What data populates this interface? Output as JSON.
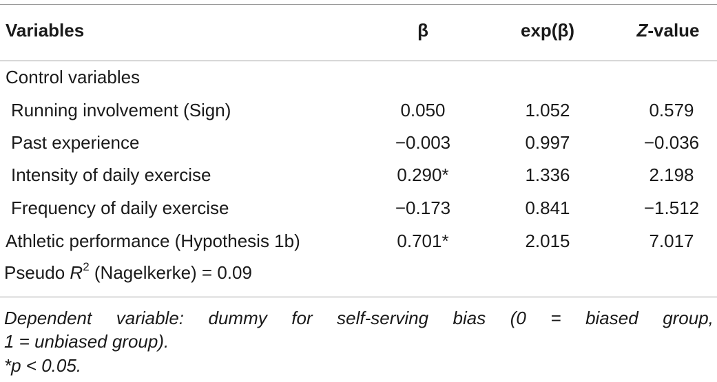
{
  "table": {
    "headers": {
      "variables": "Variables",
      "beta": "β",
      "exp_beta": "exp(β)",
      "z_italic": "Z",
      "z_rest": "-value"
    },
    "section_label": "Control variables",
    "rows": [
      {
        "label": "Running involvement (Sign)",
        "beta": "0.050",
        "exp_beta": "1.052",
        "z": "0.579"
      },
      {
        "label": "Past experience",
        "beta": "−0.003",
        "exp_beta": "0.997",
        "z": "−0.036"
      },
      {
        "label": "Intensity of daily exercise",
        "beta": "0.290*",
        "exp_beta": "1.336",
        "z": "2.198"
      },
      {
        "label": "Frequency of daily exercise",
        "beta": "−0.173",
        "exp_beta": "0.841",
        "z": "−1.512"
      },
      {
        "label": "Athletic performance (Hypothesis 1b)",
        "beta": "0.701*",
        "exp_beta": "2.015",
        "z": "7.017"
      }
    ],
    "pseudo_r2": {
      "prefix": "Pseudo ",
      "symbol": "R",
      "sup": "2",
      "suffix": " (Nagelkerke) = 0.09"
    }
  },
  "notes": {
    "line1_words": [
      "Dependent",
      "variable:",
      "dummy",
      "for",
      "self-serving",
      "bias",
      "(0",
      "=",
      "biased",
      "group,"
    ],
    "line2": "1 = unbiased group).",
    "line3": "*p < 0.05."
  }
}
